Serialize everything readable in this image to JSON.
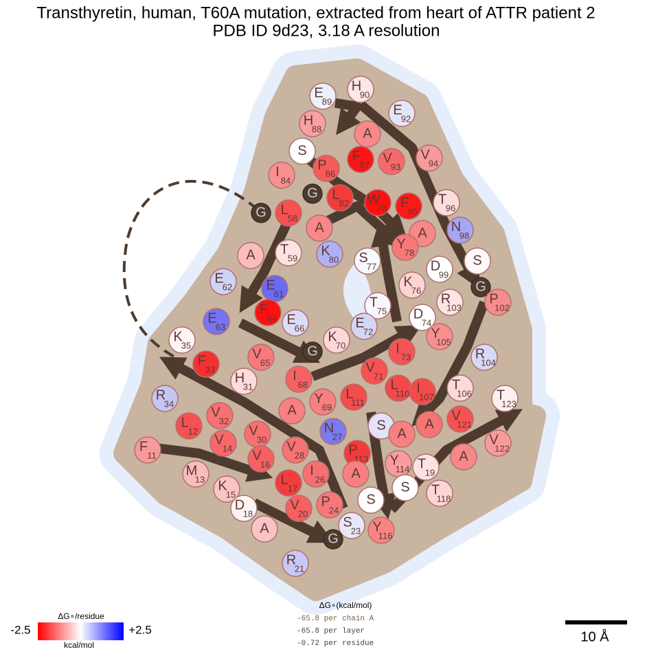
{
  "title": [
    "Transthyretin, human, T60A mutation, extracted from heart of ATTR patient 2",
    "PDB ID 9d23, 3.18 A resolution"
  ],
  "residues": [
    {
      "letter": "E",
      "number": "89",
      "color": "#eef0fb"
    },
    {
      "letter": "H",
      "number": "90",
      "color": "#fde6e6"
    },
    {
      "letter": "E",
      "number": "92",
      "color": "#e4e6f8"
    },
    {
      "letter": "H",
      "number": "88",
      "color": "#f9a0a0"
    },
    {
      "letter": "A",
      "color": "#f88a8a"
    },
    {
      "letter": "F",
      "number": "87",
      "color": "#ff1414"
    },
    {
      "letter": "V",
      "number": "93",
      "color": "#f86a6a"
    },
    {
      "letter": "V",
      "number": "94",
      "color": "#f99a9a"
    },
    {
      "letter": "S",
      "color": "#ffffff"
    },
    {
      "letter": "P",
      "number": "86",
      "color": "#f75a5a"
    },
    {
      "letter": "I",
      "number": "84",
      "color": "#f99090"
    },
    {
      "letter": "G",
      "color": "#4e3b2e"
    },
    {
      "letter": "L",
      "number": "82",
      "color": "#f53a3a"
    },
    {
      "letter": "W",
      "number": "79",
      "color": "#ff1010"
    },
    {
      "letter": "F",
      "number": "95",
      "color": "#ff1818"
    },
    {
      "letter": "T",
      "number": "96",
      "color": "#fcdcdc"
    },
    {
      "letter": "G",
      "color": "#4e3b2e"
    },
    {
      "letter": "L",
      "number": "58",
      "color": "#f65050"
    },
    {
      "letter": "A",
      "color": "#f88888"
    },
    {
      "letter": "N",
      "number": "98",
      "color": "#a6a6f6"
    },
    {
      "letter": "A",
      "color": "#f88888"
    },
    {
      "letter": "K",
      "number": "80",
      "color": "#b0b0f4"
    },
    {
      "letter": "Y",
      "number": "78",
      "color": "#f87878"
    },
    {
      "letter": "A",
      "color": "#fbbcbc"
    },
    {
      "letter": "T",
      "number": "59",
      "color": "#fde2e2"
    },
    {
      "letter": "S",
      "number": "77",
      "color": "#f8f8ff"
    },
    {
      "letter": "S",
      "color": "#fff8f8"
    },
    {
      "letter": "D",
      "number": "99",
      "color": "#ffffff"
    },
    {
      "letter": "E",
      "number": "62",
      "color": "#d0d2f6"
    },
    {
      "letter": "E",
      "number": "61",
      "color": "#6a6af4"
    },
    {
      "letter": "K",
      "number": "76",
      "color": "#fcd4d4"
    },
    {
      "letter": "G",
      "color": "#4e3b2e"
    },
    {
      "letter": "T",
      "number": "75",
      "color": "#f8f8fc"
    },
    {
      "letter": "R",
      "number": "103",
      "color": "#fde4e4"
    },
    {
      "letter": "P",
      "number": "102",
      "color": "#f88c8c"
    },
    {
      "letter": "F",
      "number": "64",
      "color": "#ff1010"
    },
    {
      "letter": "E",
      "number": "66",
      "color": "#dcdcf8"
    },
    {
      "letter": "E",
      "number": "63",
      "color": "#7474f4"
    },
    {
      "letter": "D",
      "number": "74",
      "color": "#ffffff"
    },
    {
      "letter": "E",
      "number": "72",
      "color": "#d4d6f6"
    },
    {
      "letter": "Y",
      "number": "105",
      "color": "#f89090"
    },
    {
      "letter": "K",
      "number": "35",
      "color": "#fff4f4"
    },
    {
      "letter": "K",
      "number": "70",
      "color": "#fcd8d8"
    },
    {
      "letter": "V",
      "number": "65",
      "color": "#f77a7a"
    },
    {
      "letter": "G",
      "color": "#4e3b2e"
    },
    {
      "letter": "I",
      "number": "73",
      "color": "#f55454"
    },
    {
      "letter": "R",
      "number": "104",
      "color": "#d8d8f8"
    },
    {
      "letter": "F",
      "number": "33",
      "color": "#f53030"
    },
    {
      "letter": "V",
      "number": "71",
      "color": "#f65252"
    },
    {
      "letter": "I",
      "number": "68",
      "color": "#f66262"
    },
    {
      "letter": "H",
      "number": "31",
      "color": "#fcdcdc"
    },
    {
      "letter": "T",
      "number": "106",
      "color": "#fcdada"
    },
    {
      "letter": "L",
      "number": "110",
      "color": "#f54848"
    },
    {
      "letter": "I",
      "number": "107",
      "color": "#f54a4a"
    },
    {
      "letter": "R",
      "number": "34",
      "color": "#c6c6f4"
    },
    {
      "letter": "Y",
      "number": "69",
      "color": "#f88080"
    },
    {
      "letter": "L",
      "number": "111",
      "color": "#f54c4c"
    },
    {
      "letter": "T",
      "number": "123",
      "color": "#fff0f0"
    },
    {
      "letter": "A",
      "color": "#f88080"
    },
    {
      "letter": "L",
      "number": "12",
      "color": "#f65050"
    },
    {
      "letter": "V",
      "number": "32",
      "color": "#f87070"
    },
    {
      "letter": "V",
      "number": "30",
      "color": "#f77070"
    },
    {
      "letter": "N",
      "number": "27",
      "color": "#7a7af2"
    },
    {
      "letter": "S",
      "color": "#e2e2f8"
    },
    {
      "letter": "A",
      "color": "#f88080"
    },
    {
      "letter": "A",
      "color": "#f77474"
    },
    {
      "letter": "V",
      "number": "121",
      "color": "#f65252"
    },
    {
      "letter": "V",
      "number": "122",
      "color": "#f99a9a"
    },
    {
      "letter": "F",
      "number": "11",
      "color": "#f99a9a"
    },
    {
      "letter": "V",
      "number": "14",
      "color": "#f76868"
    },
    {
      "letter": "V",
      "number": "28",
      "color": "#f87272"
    },
    {
      "letter": "P",
      "number": "113",
      "color": "#f53a3a"
    },
    {
      "letter": "V",
      "number": "16",
      "color": "#f76060"
    },
    {
      "letter": "Y",
      "number": "114",
      "color": "#f99c9c"
    },
    {
      "letter": "T",
      "number": "19",
      "color": "#fde2e2"
    },
    {
      "letter": "A",
      "color": "#f88888"
    },
    {
      "letter": "M",
      "number": "13",
      "color": "#fbbcbc"
    },
    {
      "letter": "I",
      "number": "26",
      "color": "#f77070"
    },
    {
      "letter": "L",
      "number": "17",
      "color": "#f43c3c"
    },
    {
      "letter": "A",
      "color": "#f88080"
    },
    {
      "letter": "K",
      "number": "15",
      "color": "#fbc4c4"
    },
    {
      "letter": "S",
      "color": "#ffffff"
    },
    {
      "letter": "T",
      "number": "118",
      "color": "#fcd6d6"
    },
    {
      "letter": "D",
      "number": "18",
      "color": "#fff4f4"
    },
    {
      "letter": "S",
      "color": "#ffffff"
    },
    {
      "letter": "V",
      "number": "20",
      "color": "#f76060"
    },
    {
      "letter": "P",
      "number": "24",
      "color": "#f77878"
    },
    {
      "letter": "Y",
      "number": "116",
      "color": "#f88484"
    },
    {
      "letter": "S",
      "number": "23",
      "color": "#e8e8f8"
    },
    {
      "letter": "A",
      "color": "#fbc4c4"
    },
    {
      "letter": "G",
      "color": "#4e3b2e"
    },
    {
      "letter": "R",
      "number": "21",
      "color": "#c8c8f4"
    }
  ],
  "legend": {
    "title": "ΔG∘/residue",
    "min_label": "-2.5",
    "max_label": "+2.5",
    "units": "kcal/mol"
  },
  "stats": {
    "title": "ΔG∘(kcal/mol)",
    "lines": [
      "-65.8 per chain A",
      "-65.8 per layer",
      "-0.72 per residue"
    ]
  },
  "scale_bar": "10 Å"
}
